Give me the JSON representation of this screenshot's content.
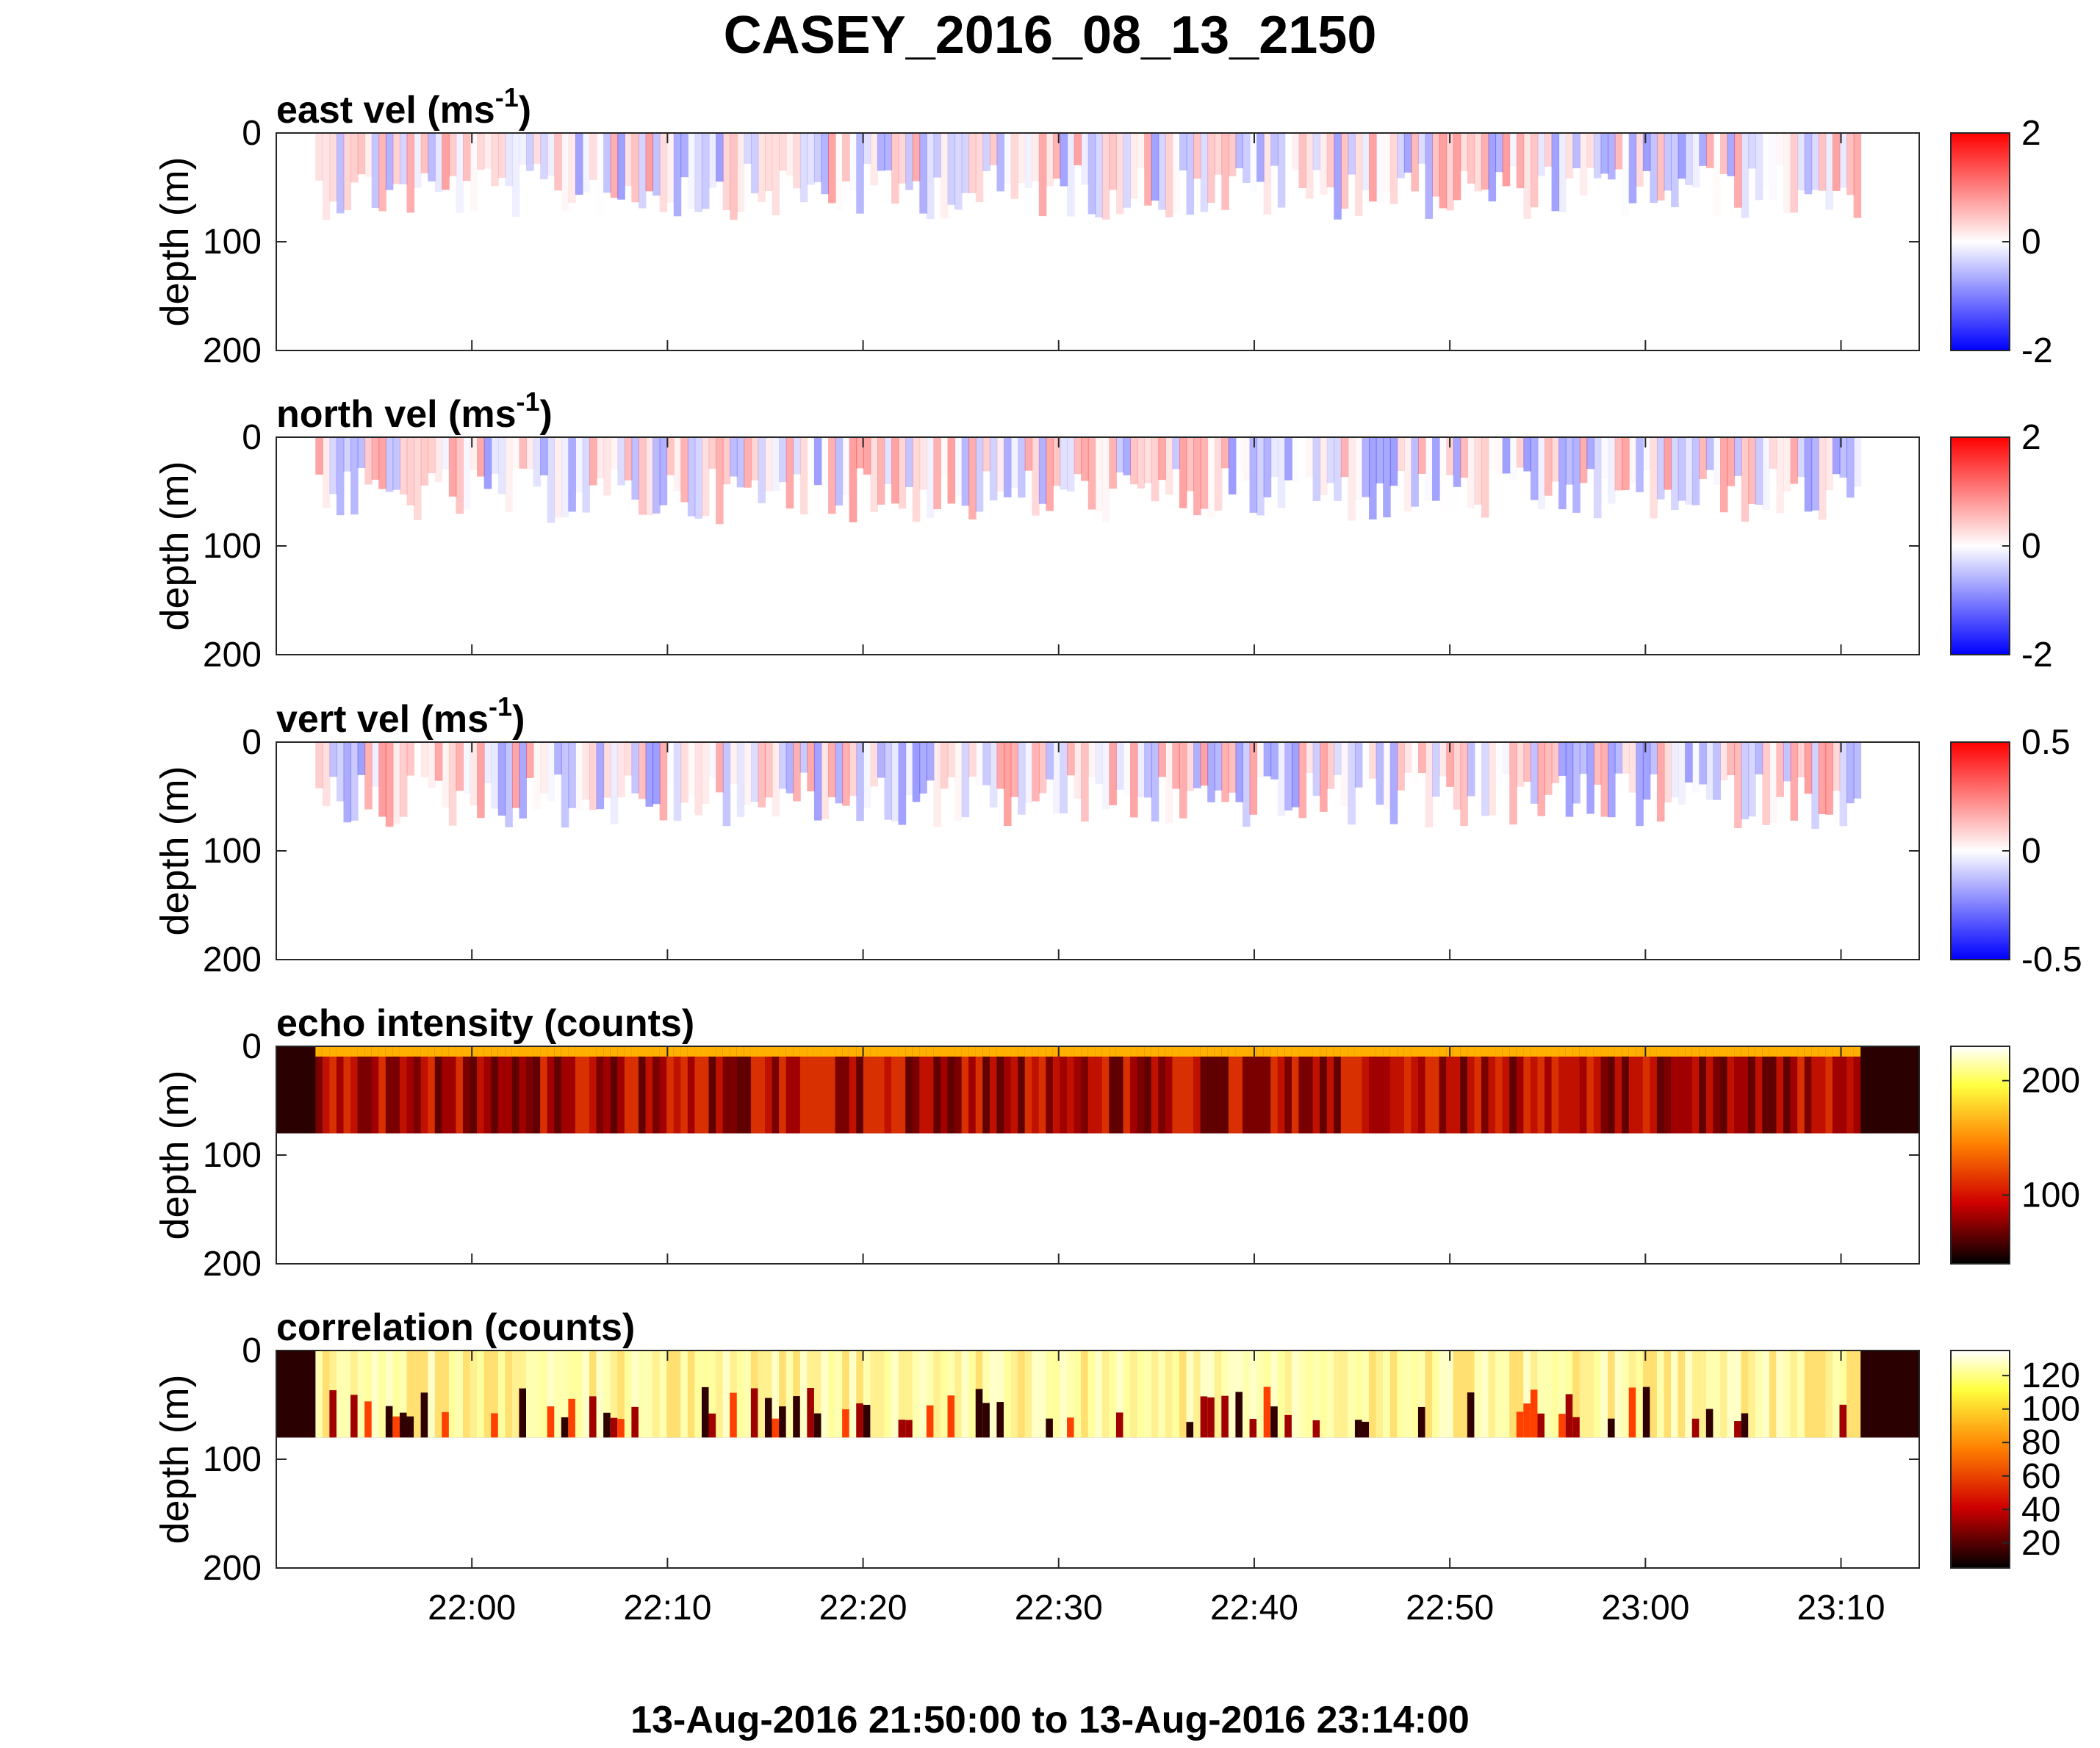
{
  "figure": {
    "title": "CASEY_2016_08_13_2150",
    "footer": "13-Aug-2016 21:50:00 to 13-Aug-2016 23:14:00"
  },
  "chart_data": [
    {
      "type": "heatmap",
      "title": "east vel (ms",
      "title_sup": "-1",
      "title_end": ")",
      "ylabel": "depth (m)",
      "ylim": [
        0,
        200
      ],
      "yticks": [
        "0",
        "100",
        "200"
      ],
      "xlim": [
        "21:50",
        "23:14"
      ],
      "xticks": [
        "22:00",
        "22:10",
        "22:20",
        "22:30",
        "22:40",
        "22:50",
        "23:00",
        "23:10"
      ],
      "data_depth_max": 80,
      "colormap": "blue-white-red",
      "clim": [
        -2,
        2
      ],
      "colorbar_ticks": [
        "2",
        "0",
        "-2"
      ]
    },
    {
      "type": "heatmap",
      "title": "north vel (ms",
      "title_sup": "-1",
      "title_end": ")",
      "ylabel": "depth (m)",
      "ylim": [
        0,
        200
      ],
      "yticks": [
        "0",
        "100",
        "200"
      ],
      "xlim": [
        "21:50",
        "23:14"
      ],
      "data_depth_max": 80,
      "colormap": "blue-white-red",
      "clim": [
        -2,
        2
      ],
      "colorbar_ticks": [
        "2",
        "0",
        "-2"
      ]
    },
    {
      "type": "heatmap",
      "title": "vert vel (ms",
      "title_sup": "-1",
      "title_end": ")",
      "ylabel": "depth (m)",
      "ylim": [
        0,
        200
      ],
      "yticks": [
        "0",
        "100",
        "200"
      ],
      "xlim": [
        "21:50",
        "23:14"
      ],
      "data_depth_max": 80,
      "colormap": "blue-white-red",
      "clim": [
        -0.5,
        0.5
      ],
      "colorbar_ticks": [
        "0.5",
        "0",
        "-0.5"
      ]
    },
    {
      "type": "heatmap",
      "title": "echo intensity (counts)",
      "ylabel": "depth (m)",
      "ylim": [
        0,
        200
      ],
      "yticks": [
        "0",
        "100",
        "200"
      ],
      "xlim": [
        "21:50",
        "23:14"
      ],
      "data_depth_max": 80,
      "colormap": "hot",
      "clim": [
        40,
        230
      ],
      "colorbar_ticks": [
        "200",
        "100"
      ]
    },
    {
      "type": "heatmap",
      "title": "correlation (counts)",
      "ylabel": "depth (m)",
      "ylim": [
        0,
        200
      ],
      "yticks": [
        "0",
        "100",
        "200"
      ],
      "xlim": [
        "21:50",
        "23:14"
      ],
      "data_depth_max": 80,
      "colormap": "hot",
      "clim": [
        5,
        135
      ],
      "colorbar_ticks": [
        "120",
        "100",
        "80",
        "60",
        "40",
        "20"
      ]
    }
  ]
}
